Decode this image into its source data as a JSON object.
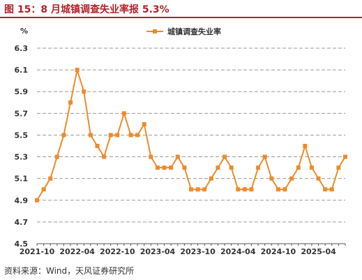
{
  "header": {
    "title": "图 15：8 月城镇调查失业率报 5.3%"
  },
  "footer": {
    "source": "资料来源：Wind，天风证券研究所"
  },
  "chart_data": {
    "type": "line",
    "yunit": "%",
    "ylim": [
      4.5,
      6.3
    ],
    "yticks": [
      "4.5",
      "4.7",
      "4.9",
      "5.1",
      "5.3",
      "5.5",
      "5.7",
      "5.9",
      "6.1",
      "6.3"
    ],
    "xtick_labels": [
      "2021-10",
      "2022-04",
      "2022-10",
      "2023-04",
      "2023-10",
      "2024-04",
      "2024-10",
      "2025-04"
    ],
    "grid": true,
    "legend_position": "top-right",
    "colors": {
      "series": "#ed8b2b",
      "grid": "#9a9a9a",
      "title": "#b3232b"
    },
    "x": [
      "2021-10",
      "2021-11",
      "2021-12",
      "2022-01",
      "2022-02",
      "2022-03",
      "2022-04",
      "2022-05",
      "2022-06",
      "2022-07",
      "2022-08",
      "2022-09",
      "2022-10",
      "2022-11",
      "2022-12",
      "2023-01",
      "2023-02",
      "2023-03",
      "2023-04",
      "2023-05",
      "2023-06",
      "2023-07",
      "2023-08",
      "2023-09",
      "2023-10",
      "2023-11",
      "2023-12",
      "2024-01",
      "2024-02",
      "2024-03",
      "2024-04",
      "2024-05",
      "2024-06",
      "2024-07",
      "2024-08",
      "2024-09",
      "2024-10",
      "2024-11",
      "2024-12",
      "2025-01",
      "2025-02",
      "2025-03",
      "2025-04",
      "2025-05",
      "2025-06",
      "2025-07",
      "2025-08"
    ],
    "series": [
      {
        "name": "城镇调查失业率",
        "values": [
          4.9,
          5.0,
          5.1,
          5.3,
          5.5,
          5.8,
          6.1,
          5.9,
          5.5,
          5.4,
          5.3,
          5.5,
          5.5,
          5.7,
          5.5,
          5.5,
          5.6,
          5.3,
          5.2,
          5.2,
          5.2,
          5.3,
          5.2,
          5.0,
          5.0,
          5.0,
          5.1,
          5.2,
          5.3,
          5.2,
          5.0,
          5.0,
          5.0,
          5.2,
          5.3,
          5.1,
          5.0,
          5.0,
          5.1,
          5.2,
          5.4,
          5.2,
          5.1,
          5.0,
          5.0,
          5.2,
          5.3
        ]
      }
    ]
  }
}
